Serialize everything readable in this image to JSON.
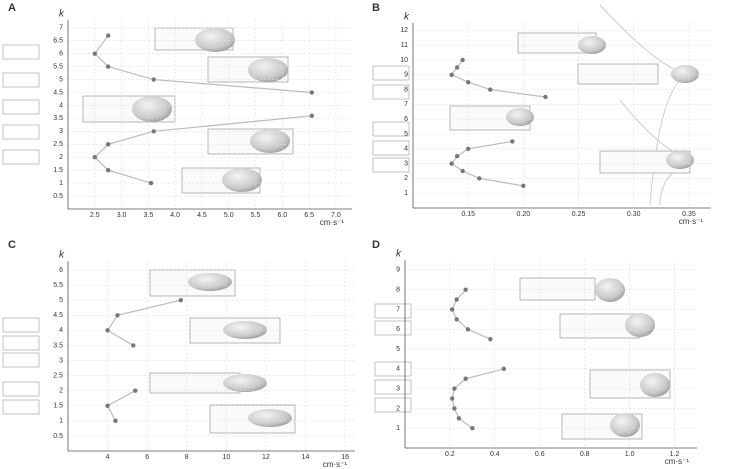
{
  "chart_data": [
    {
      "type": "scatter",
      "panel_label": "A",
      "ylabel": "k",
      "xlabel": "cm·s⁻¹",
      "xlim": [
        2.0,
        7.3
      ],
      "ylim": [
        0,
        7.3
      ],
      "xticks": [
        2.5,
        {
          "value": 3,
          "label": "3.0"
        },
        3.5,
        {
          "value": 4,
          "label": "4.0"
        },
        4.5,
        {
          "value": 5,
          "label": "5.0"
        },
        5.5,
        {
          "value": 6,
          "label": "6.0"
        },
        6.5,
        {
          "value": 7,
          "label": "7.0"
        }
      ],
      "yticks": [
        0.5,
        1,
        1.5,
        2,
        2.5,
        3,
        3.5,
        4,
        4.5,
        5,
        5.5,
        6,
        6.5,
        7
      ],
      "grid": true,
      "series": [
        {
          "color": "#777777",
          "x": [
            2.75,
            2.5,
            2.75,
            3.6,
            6.55
          ],
          "values": [
            6.7,
            6,
            5.5,
            5,
            4.5
          ]
        },
        {
          "color": "#777777",
          "x": [
            6.55,
            3.6,
            2.75,
            2.5,
            2.75,
            3.55
          ],
          "values": [
            3.6,
            3,
            2.5,
            2,
            1.5,
            1
          ]
        }
      ]
    },
    {
      "type": "scatter",
      "panel_label": "B",
      "ylabel": "k",
      "xlabel": "cm·s⁻¹",
      "xlim": [
        0.1,
        0.37
      ],
      "ylim": [
        0,
        12.5
      ],
      "xticks": [
        0.15,
        {
          "value": 0.2,
          "label": "0.20"
        },
        0.25,
        {
          "value": 0.3,
          "label": "0.30"
        },
        0.35
      ],
      "yticks": [
        1,
        2,
        3,
        4,
        5,
        6,
        7,
        8,
        9,
        10,
        11,
        12
      ],
      "grid": true,
      "series": [
        {
          "color": "#777777",
          "x": [
            0.145,
            0.14,
            0.135,
            0.15,
            0.17,
            0.22
          ],
          "values": [
            10,
            9.5,
            9,
            8.5,
            8,
            7.5
          ]
        },
        {
          "color": "#777777",
          "x": [
            0.19,
            0.15,
            0.14,
            0.135,
            0.145,
            0.16,
            0.2
          ],
          "values": [
            4.5,
            4,
            3.5,
            3,
            2.5,
            2,
            1.5
          ]
        }
      ]
    },
    {
      "type": "scatter",
      "panel_label": "C",
      "ylabel": "k",
      "xlabel": "cm·s⁻¹",
      "xlim": [
        2,
        16.5
      ],
      "ylim": [
        0,
        6.3
      ],
      "xticks": [
        4,
        6,
        8,
        10,
        12,
        14,
        16
      ],
      "yticks": [
        0.5,
        1,
        1.5,
        2,
        2.5,
        3,
        3.5,
        4,
        4.5,
        5,
        5.5,
        6
      ],
      "grid": true,
      "series": [
        {
          "color": "#777777",
          "x": [
            7.7,
            4.5,
            4,
            5.3
          ],
          "values": [
            5,
            4.5,
            4,
            3.5
          ]
        },
        {
          "color": "#777777",
          "x": [
            5.4,
            4,
            4.4
          ],
          "values": [
            2,
            1.5,
            1
          ]
        }
      ]
    },
    {
      "type": "scatter",
      "panel_label": "D",
      "ylabel": "k",
      "xlabel": "cm·s⁻¹",
      "xlim": [
        0,
        1.3
      ],
      "ylim": [
        0,
        9.5
      ],
      "xticks": [
        0.2,
        0.4,
        0.6,
        0.8,
        {
          "value": 1,
          "label": "1.0"
        },
        1.2
      ],
      "yticks": [
        1,
        2,
        3,
        4,
        5,
        6,
        7,
        8,
        9
      ],
      "grid": true,
      "series": [
        {
          "color": "#777777",
          "x": [
            0.27,
            0.23,
            0.21,
            0.23,
            0.28,
            0.38
          ],
          "values": [
            8,
            7.5,
            7,
            6.5,
            6,
            5.5
          ]
        },
        {
          "color": "#777777",
          "x": [
            0.44,
            0.27,
            0.22,
            0.21,
            0.22,
            0.24,
            0.3
          ],
          "values": [
            4,
            3.5,
            3,
            2.5,
            2,
            1.5,
            1
          ]
        }
      ]
    }
  ]
}
